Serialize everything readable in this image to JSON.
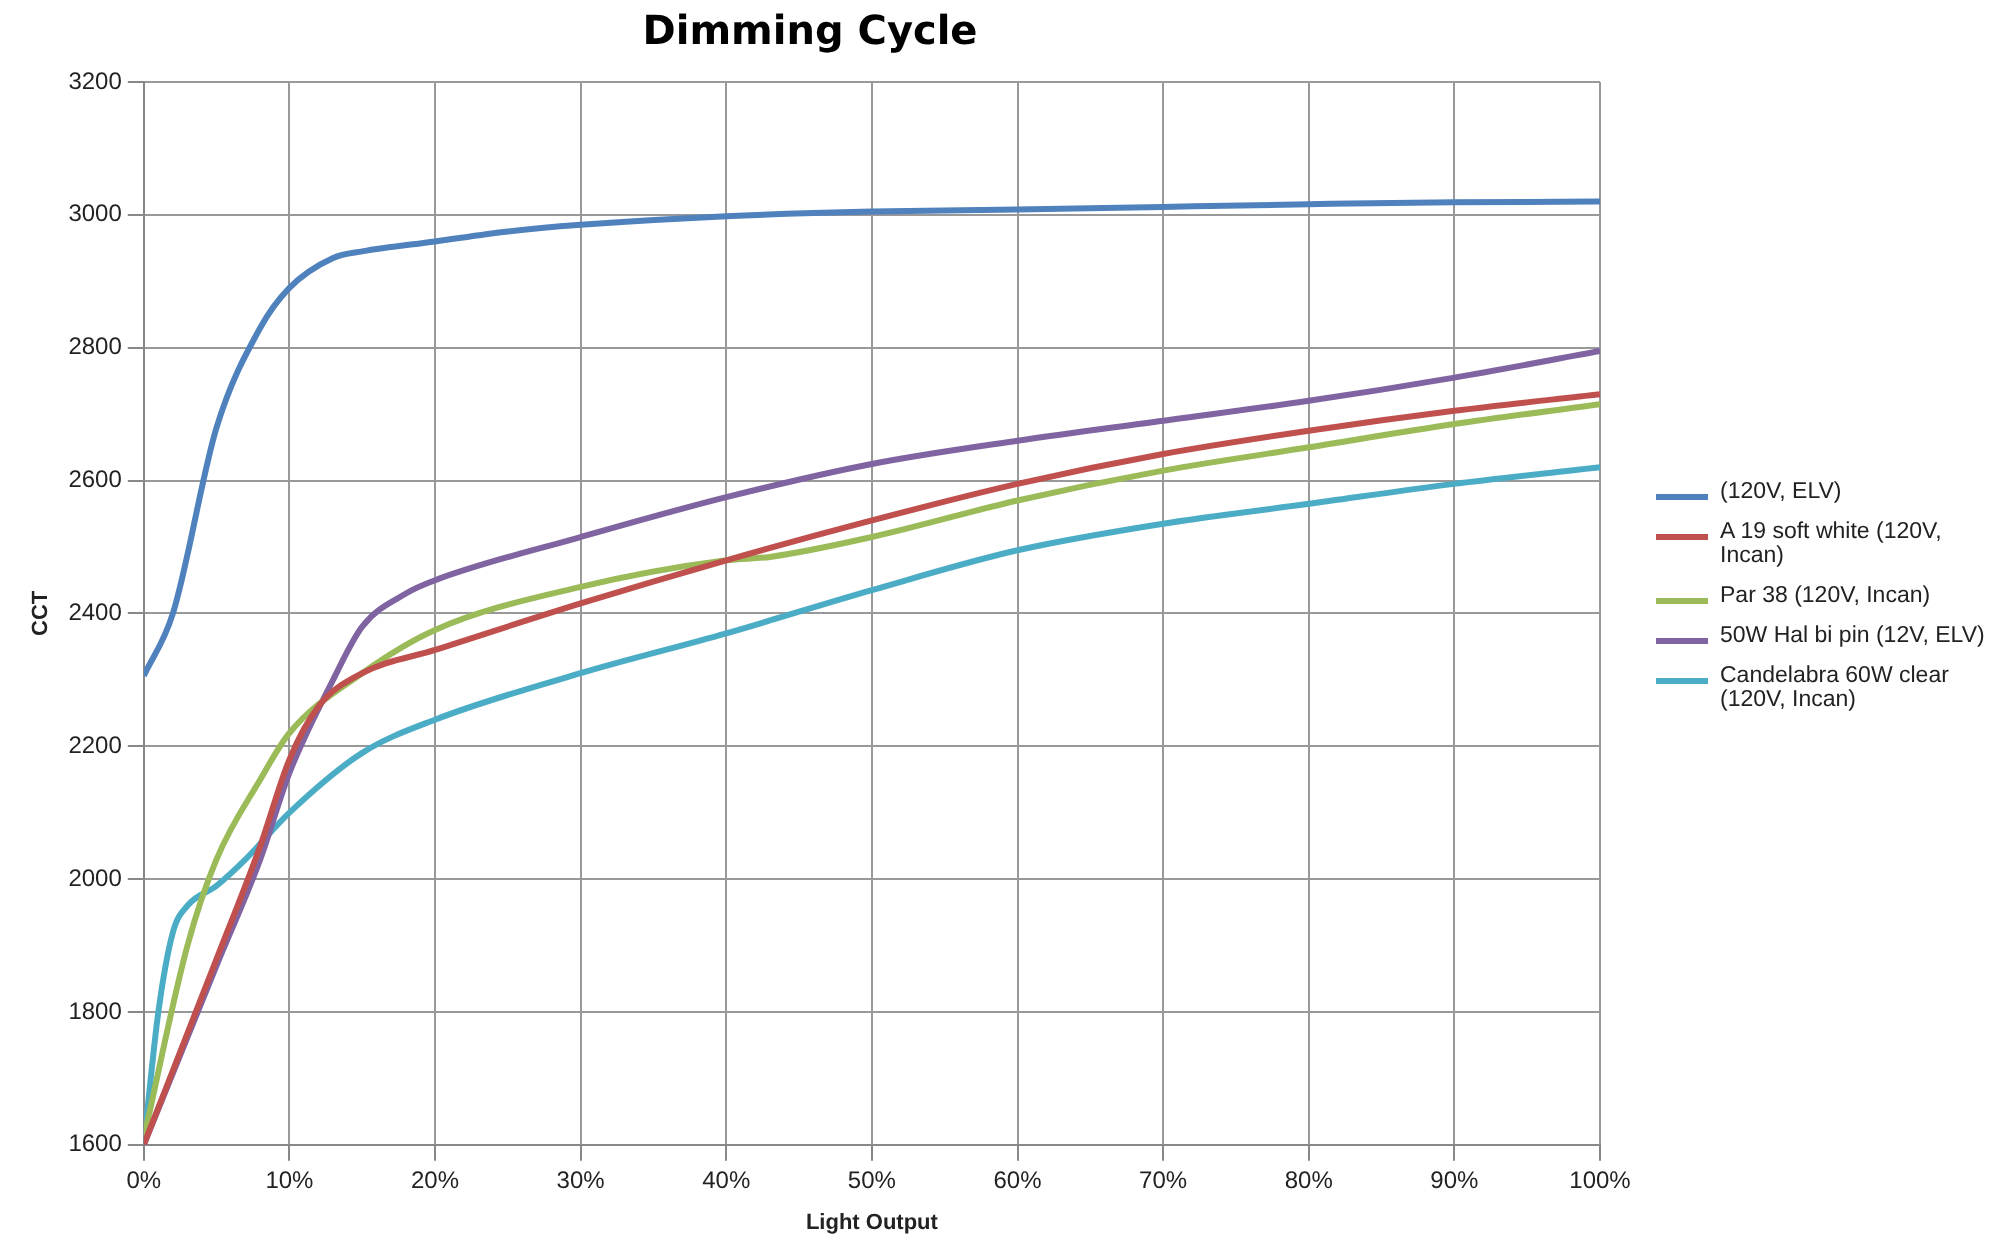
{
  "chart_data": {
    "type": "line",
    "title": "Dimming Cycle",
    "xlabel": "Light Output",
    "ylabel": "CCT",
    "xlim": [
      0,
      100
    ],
    "xticks": [
      {
        "value": 0,
        "label": "0%"
      },
      {
        "value": 10,
        "label": "10%"
      },
      {
        "value": 20,
        "label": "20%"
      },
      {
        "value": 30,
        "label": "30%"
      },
      {
        "value": 40,
        "label": "40%"
      },
      {
        "value": 50,
        "label": "50%"
      },
      {
        "value": 60,
        "label": "60%"
      },
      {
        "value": 70,
        "label": "70%"
      },
      {
        "value": 80,
        "label": "80%"
      },
      {
        "value": 90,
        "label": "90%"
      },
      {
        "value": 100,
        "label": "100%"
      }
    ],
    "ylim": [
      1600,
      3200
    ],
    "yticks": [
      1600,
      1800,
      2000,
      2200,
      2400,
      2600,
      2800,
      3000,
      3200
    ],
    "grid": true,
    "legend": "right",
    "marker": "none",
    "line_style": "solid",
    "series": [
      {
        "name": "(120V, ELV)",
        "color": "#4f81bd",
        "x": [
          0,
          2,
          5,
          8,
          10,
          13,
          15,
          20,
          25,
          30,
          40,
          50,
          60,
          70,
          80,
          90,
          100
        ],
        "values": [
          2306,
          2400,
          2680,
          2830,
          2890,
          2935,
          2945,
          2960,
          2975,
          2985,
          2998,
          3005,
          3008,
          3012,
          3016,
          3019,
          3020
        ]
      },
      {
        "name": "A 19 soft white (120V, Incan)",
        "color": "#c0504d",
        "x": [
          0,
          5,
          8,
          10,
          12,
          15,
          20,
          30,
          40,
          50,
          60,
          70,
          80,
          90,
          100
        ],
        "values": [
          1600,
          1880,
          2050,
          2180,
          2260,
          2310,
          2345,
          2415,
          2480,
          2540,
          2595,
          2640,
          2675,
          2705,
          2730
        ]
      },
      {
        "name": "Par 38 (120V, Incan)",
        "color": "#9bbb59",
        "x": [
          0,
          3,
          5,
          8,
          10,
          15,
          20,
          30,
          40,
          43,
          50,
          60,
          70,
          80,
          90,
          100
        ],
        "values": [
          1610,
          1900,
          2030,
          2150,
          2220,
          2310,
          2375,
          2440,
          2480,
          2485,
          2515,
          2570,
          2615,
          2650,
          2685,
          2715
        ]
      },
      {
        "name": "50W Hal bi pin (12V, ELV)",
        "color": "#8064a2",
        "x": [
          0,
          5,
          8,
          10,
          13,
          15,
          18,
          20,
          30,
          40,
          50,
          60,
          70,
          80,
          90,
          100
        ],
        "values": [
          1600,
          1870,
          2030,
          2160,
          2300,
          2380,
          2430,
          2450,
          2515,
          2575,
          2625,
          2660,
          2690,
          2720,
          2755,
          2795
        ]
      },
      {
        "name": "Candelabra 60W clear (120V, Incan)",
        "color": "#4bacc6",
        "x": [
          0,
          1,
          2,
          3,
          5,
          7,
          10,
          15,
          20,
          30,
          40,
          50,
          60,
          70,
          80,
          90,
          100
        ],
        "values": [
          1600,
          1800,
          1920,
          1960,
          1990,
          2030,
          2100,
          2190,
          2240,
          2310,
          2370,
          2435,
          2495,
          2535,
          2565,
          2595,
          2620
        ]
      }
    ]
  }
}
